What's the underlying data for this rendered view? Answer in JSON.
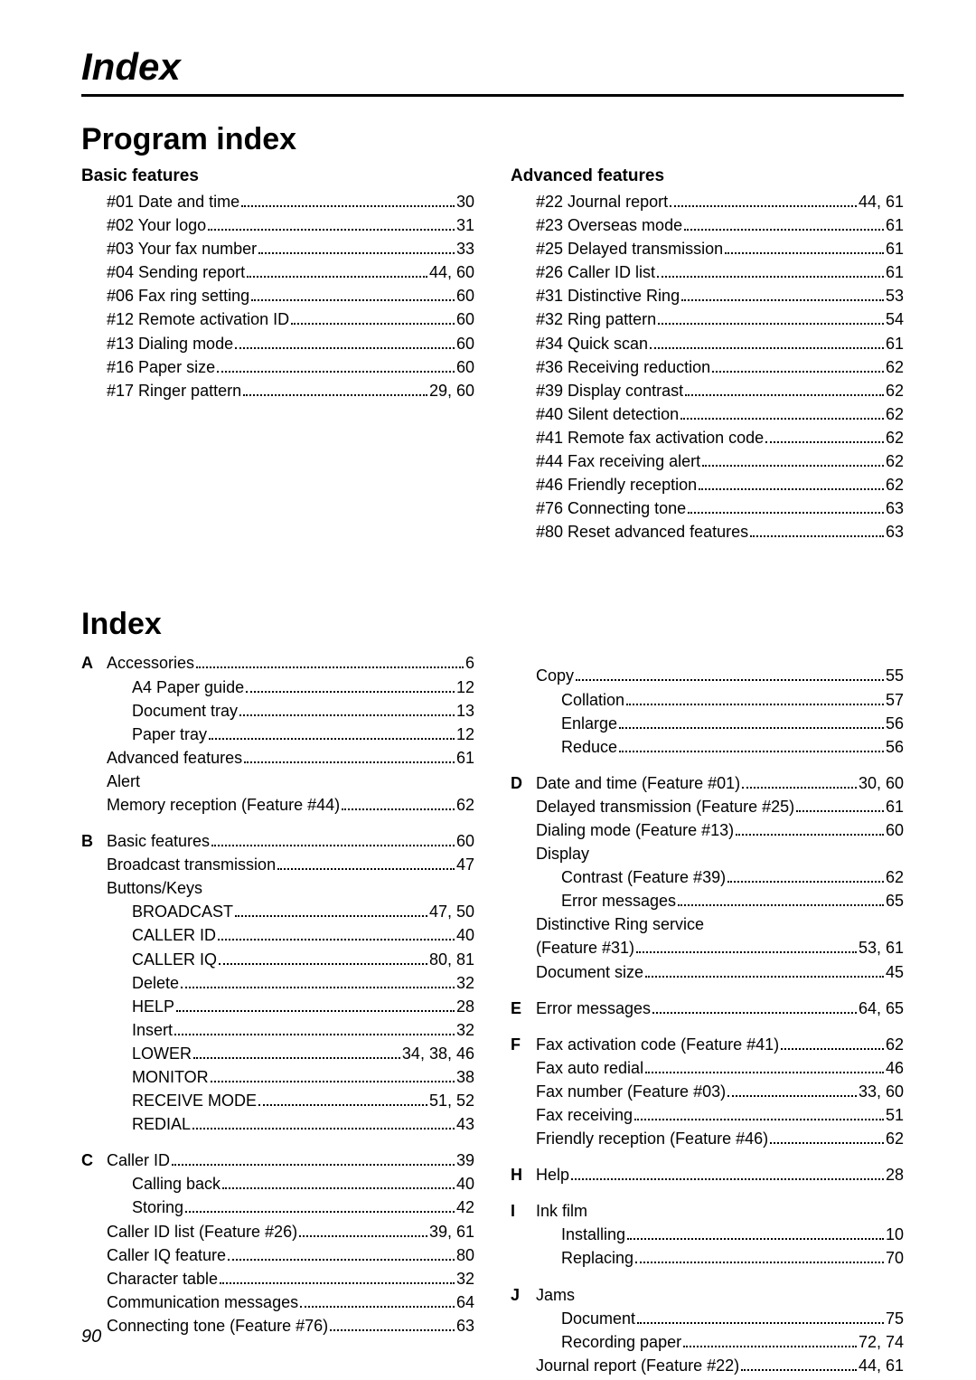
{
  "top_title": "Index",
  "section1_title": "Program index",
  "section2_title": "Index",
  "page_number": "90",
  "basic": {
    "heading": "Basic features",
    "items": [
      {
        "label": "#01 Date and time",
        "page": "30"
      },
      {
        "label": "#02 Your logo",
        "page": "31"
      },
      {
        "label": "#03 Your fax number",
        "page": "33"
      },
      {
        "label": "#04 Sending report",
        "page": "44, 60"
      },
      {
        "label": "#06 Fax ring setting",
        "page": "60"
      },
      {
        "label": "#12 Remote activation ID",
        "page": "60"
      },
      {
        "label": "#13 Dialing mode",
        "page": "60"
      },
      {
        "label": "#16 Paper size",
        "page": "60"
      },
      {
        "label": "#17 Ringer pattern",
        "page": "29, 60"
      }
    ]
  },
  "advanced": {
    "heading": "Advanced features",
    "items": [
      {
        "label": "#22 Journal report",
        "page": "44, 61"
      },
      {
        "label": "#23 Overseas mode",
        "page": "61"
      },
      {
        "label": "#25 Delayed transmission",
        "page": "61"
      },
      {
        "label": "#26 Caller ID list",
        "page": "61"
      },
      {
        "label": "#31 Distinctive Ring",
        "page": "53"
      },
      {
        "label": "#32 Ring pattern",
        "page": "54"
      },
      {
        "label": "#34 Quick scan",
        "page": "61"
      },
      {
        "label": "#36 Receiving reduction",
        "page": "62"
      },
      {
        "label": "#39 Display contrast",
        "page": "62"
      },
      {
        "label": "#40 Silent detection",
        "page": "62"
      },
      {
        "label": "#41 Remote fax activation code",
        "page": "62"
      },
      {
        "label": "#44 Fax receiving alert",
        "page": "62"
      },
      {
        "label": "#46 Friendly reception",
        "page": "62"
      },
      {
        "label": "#76 Connecting tone",
        "page": "63"
      },
      {
        "label": "#80 Reset advanced features",
        "page": "63"
      }
    ]
  },
  "alpha_left": [
    {
      "letter": "A",
      "rows": [
        {
          "t": "entry",
          "label": "Accessories",
          "page": "6",
          "indent": 0
        },
        {
          "t": "entry",
          "label": "A4 Paper guide",
          "page": "12",
          "indent": 1
        },
        {
          "t": "entry",
          "label": "Document tray",
          "page": "13",
          "indent": 1
        },
        {
          "t": "entry",
          "label": "Paper tray",
          "page": "12",
          "indent": 1
        },
        {
          "t": "entry",
          "label": "Advanced features",
          "page": "61",
          "indent": 0
        },
        {
          "t": "text",
          "label": "Alert",
          "indent": 0
        },
        {
          "t": "entry",
          "label": "Memory reception (Feature #44)",
          "page": "62",
          "indent": 0
        }
      ]
    },
    {
      "letter": "B",
      "rows": [
        {
          "t": "entry",
          "label": "Basic features",
          "page": "60",
          "indent": 0
        },
        {
          "t": "entry",
          "label": "Broadcast transmission",
          "page": "47",
          "indent": 0
        },
        {
          "t": "text",
          "label": "Buttons/Keys",
          "indent": 0
        },
        {
          "t": "entry",
          "label": "BROADCAST",
          "page": "47, 50",
          "indent": 1
        },
        {
          "t": "entry",
          "label": "CALLER ID",
          "page": "40",
          "indent": 1
        },
        {
          "t": "entry",
          "label": "CALLER IQ",
          "page": "80, 81",
          "indent": 1
        },
        {
          "t": "entry",
          "label": "Delete",
          "page": "32",
          "indent": 1
        },
        {
          "t": "entry",
          "label": "HELP",
          "page": "28",
          "indent": 1
        },
        {
          "t": "entry",
          "label": "Insert",
          "page": "32",
          "indent": 1
        },
        {
          "t": "entry",
          "label": "LOWER",
          "page": "34, 38, 46",
          "indent": 1
        },
        {
          "t": "entry",
          "label": "MONITOR",
          "page": "38",
          "indent": 1
        },
        {
          "t": "entry",
          "label": "RECEIVE MODE",
          "page": "51, 52",
          "indent": 1
        },
        {
          "t": "entry",
          "label": "REDIAL",
          "page": "43",
          "indent": 1
        }
      ]
    },
    {
      "letter": "C",
      "rows": [
        {
          "t": "entry",
          "label": "Caller ID",
          "page": "39",
          "indent": 0
        },
        {
          "t": "entry",
          "label": "Calling back",
          "page": "40",
          "indent": 1
        },
        {
          "t": "entry",
          "label": "Storing",
          "page": "42",
          "indent": 1
        },
        {
          "t": "entry",
          "label": "Caller ID list (Feature #26)",
          "page": "39, 61",
          "indent": 0
        },
        {
          "t": "entry",
          "label": "Caller IQ feature",
          "page": "80",
          "indent": 0
        },
        {
          "t": "entry",
          "label": "Character table",
          "page": "32",
          "indent": 0
        },
        {
          "t": "entry",
          "label": "Communication messages",
          "page": "64",
          "indent": 0
        },
        {
          "t": "entry",
          "label": "Connecting tone (Feature #76)",
          "page": "63",
          "indent": 0
        }
      ]
    }
  ],
  "alpha_right": [
    {
      "letter": "",
      "rows": [
        {
          "t": "entry",
          "label": "Copy",
          "page": "55",
          "indent": 0
        },
        {
          "t": "entry",
          "label": "Collation",
          "page": "57",
          "indent": 1
        },
        {
          "t": "entry",
          "label": "Enlarge",
          "page": "56",
          "indent": 1
        },
        {
          "t": "entry",
          "label": "Reduce",
          "page": "56",
          "indent": 1
        }
      ]
    },
    {
      "letter": "D",
      "rows": [
        {
          "t": "entry",
          "label": "Date and time (Feature #01)",
          "page": "30, 60",
          "indent": 0
        },
        {
          "t": "entry",
          "label": "Delayed transmission (Feature #25)",
          "page": "61",
          "indent": 0
        },
        {
          "t": "entry",
          "label": "Dialing mode (Feature #13)",
          "page": "60",
          "indent": 0
        },
        {
          "t": "text",
          "label": "Display",
          "indent": 0
        },
        {
          "t": "entry",
          "label": "Contrast (Feature #39)",
          "page": "62",
          "indent": 1
        },
        {
          "t": "entry",
          "label": "Error messages",
          "page": "65",
          "indent": 1
        },
        {
          "t": "text",
          "label": "Distinctive Ring service",
          "indent": 0
        },
        {
          "t": "entry",
          "label": "(Feature #31)",
          "page": "53, 61",
          "indent": 0
        },
        {
          "t": "entry",
          "label": "Document size",
          "page": "45",
          "indent": 0
        }
      ]
    },
    {
      "letter": "E",
      "rows": [
        {
          "t": "entry",
          "label": "Error messages",
          "page": "64, 65",
          "indent": 0
        }
      ]
    },
    {
      "letter": "F",
      "rows": [
        {
          "t": "entry",
          "label": "Fax activation code (Feature #41)",
          "page": "62",
          "indent": 0
        },
        {
          "t": "entry",
          "label": "Fax auto redial",
          "page": "46",
          "indent": 0
        },
        {
          "t": "entry",
          "label": "Fax number (Feature #03)",
          "page": "33, 60",
          "indent": 0
        },
        {
          "t": "entry",
          "label": "Fax receiving",
          "page": "51",
          "indent": 0
        },
        {
          "t": "entry",
          "label": "Friendly reception (Feature #46)",
          "page": "62",
          "indent": 0
        }
      ]
    },
    {
      "letter": "H",
      "rows": [
        {
          "t": "entry",
          "label": "Help",
          "page": "28",
          "indent": 0
        }
      ]
    },
    {
      "letter": "I",
      "rows": [
        {
          "t": "text",
          "label": "Ink film",
          "indent": 0
        },
        {
          "t": "entry",
          "label": "Installing",
          "page": "10",
          "indent": 1
        },
        {
          "t": "entry",
          "label": "Replacing",
          "page": "70",
          "indent": 1
        }
      ]
    },
    {
      "letter": "J",
      "rows": [
        {
          "t": "text",
          "label": "Jams",
          "indent": 0
        },
        {
          "t": "entry",
          "label": "Document",
          "page": "75",
          "indent": 1
        },
        {
          "t": "entry",
          "label": "Recording paper",
          "page": "72, 74",
          "indent": 1
        },
        {
          "t": "entry",
          "label": "Journal report (Feature #22)",
          "page": "44, 61",
          "indent": 0
        }
      ]
    }
  ]
}
